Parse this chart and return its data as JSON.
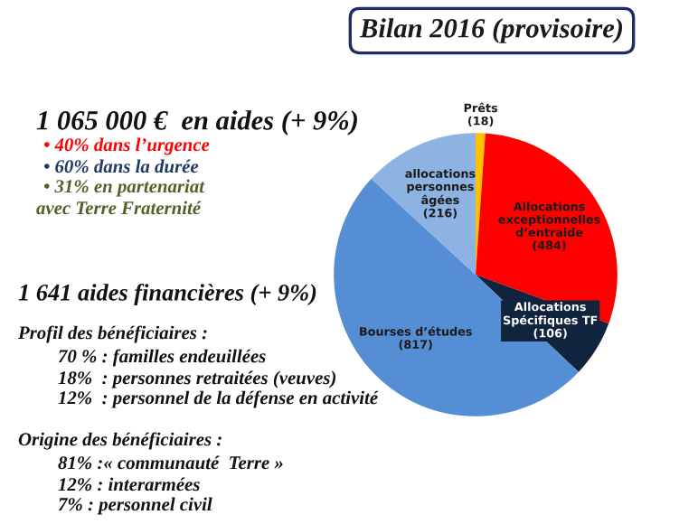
{
  "chart_data": {
    "type": "pie",
    "title": "Bilan 2016 (provisoire)",
    "categories": [
      "Prêts",
      "Allocations\nexceptionnelles\nd’entraide",
      "Allocations\nSpécifiques TF",
      "Bourses d’études",
      "allocations\npersonnes\nâgées"
    ],
    "values": [
      18,
      484,
      106,
      817,
      216
    ],
    "value_labels": [
      "(18)",
      "(484)",
      "(106)",
      "(817)",
      "(216)"
    ],
    "colors": [
      "#ffc000",
      "#ff0000",
      "#10243e",
      "#558ed5",
      "#8db3e2"
    ],
    "annotations": [
      "1 065 000 €  en aides (+ 9%)",
      "• 40% dans l’urgence",
      "• 60% dans la durée",
      "• 31% en partenariat",
      "avec Terre Fraternité",
      "1 641 aides financières (+ 9%)",
      "Profil des bénéficiaires :",
      "70 % : familles endeuillées",
      "18%  : personnes retraitées (veuves)",
      "12%  : personnel de la défense en activité",
      "Origine des bénéficiaires :",
      "81% :« communauté  Terre »",
      "12% : interarmées",
      "7% : personnel civil"
    ]
  }
}
